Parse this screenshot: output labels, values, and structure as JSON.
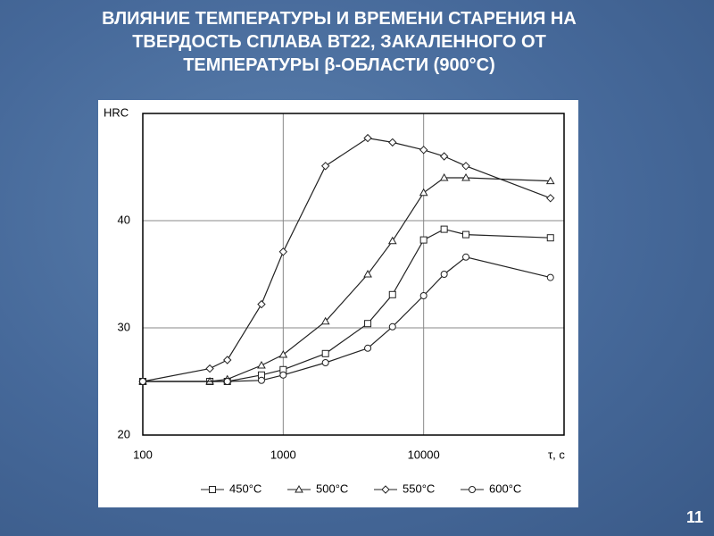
{
  "slide": {
    "title": [
      "ВЛИЯНИЕ ТЕМПЕРАТУРЫ И ВРЕМЕНИ СТАРЕНИЯ НА",
      "ТВЕРДОСТЬ СПЛАВА ВТ22, ЗАКАЛЕННОГО ОТ",
      "ТЕМПЕРАТУРЫ β-ОБЛАСТИ (900°С)"
    ],
    "number": "11"
  },
  "chart_data": {
    "type": "line",
    "x_scale": "log",
    "grid": true,
    "y_label": "HRC",
    "x_label": "τ, с",
    "xlim": [
      100,
      100000
    ],
    "xticks": [
      100,
      1000,
      10000
    ],
    "ylim": [
      20,
      50
    ],
    "yticks": [
      20,
      30,
      40
    ],
    "series": [
      {
        "name": "450°C",
        "color": "#222222",
        "marker": "square",
        "x": [
          100,
          300,
          400,
          700,
          1000,
          2000,
          4000,
          6000,
          10000,
          14000,
          20000,
          80000
        ],
        "values": [
          25,
          25,
          25,
          25.6,
          26.1,
          27.6,
          30.4,
          33.1,
          38.2,
          39.2,
          38.7,
          38.4
        ]
      },
      {
        "name": "500°C",
        "color": "#222222",
        "marker": "triangle",
        "x": [
          100,
          300,
          400,
          700,
          1000,
          2000,
          4000,
          6000,
          10000,
          14000,
          20000,
          80000
        ],
        "values": [
          25,
          25,
          25.2,
          26.5,
          27.5,
          30.6,
          35,
          38.1,
          42.6,
          44,
          44,
          43.7
        ]
      },
      {
        "name": "550°C",
        "color": "#222222",
        "marker": "diamond",
        "x": [
          100,
          300,
          400,
          700,
          1000,
          2000,
          4000,
          6000,
          10000,
          14000,
          20000,
          80000
        ],
        "values": [
          25,
          26.2,
          27,
          32.2,
          37.1,
          45.1,
          47.7,
          47.3,
          46.6,
          46,
          45.1,
          42.1
        ]
      },
      {
        "name": "600°C",
        "color": "#222222",
        "marker": "circle",
        "x": [
          100,
          400,
          700,
          1000,
          2000,
          4000,
          6000,
          10000,
          14000,
          20000,
          80000
        ],
        "values": [
          25,
          25,
          25.1,
          25.6,
          26.75,
          28.1,
          30.1,
          33,
          35,
          36.6,
          34.7
        ]
      }
    ]
  }
}
